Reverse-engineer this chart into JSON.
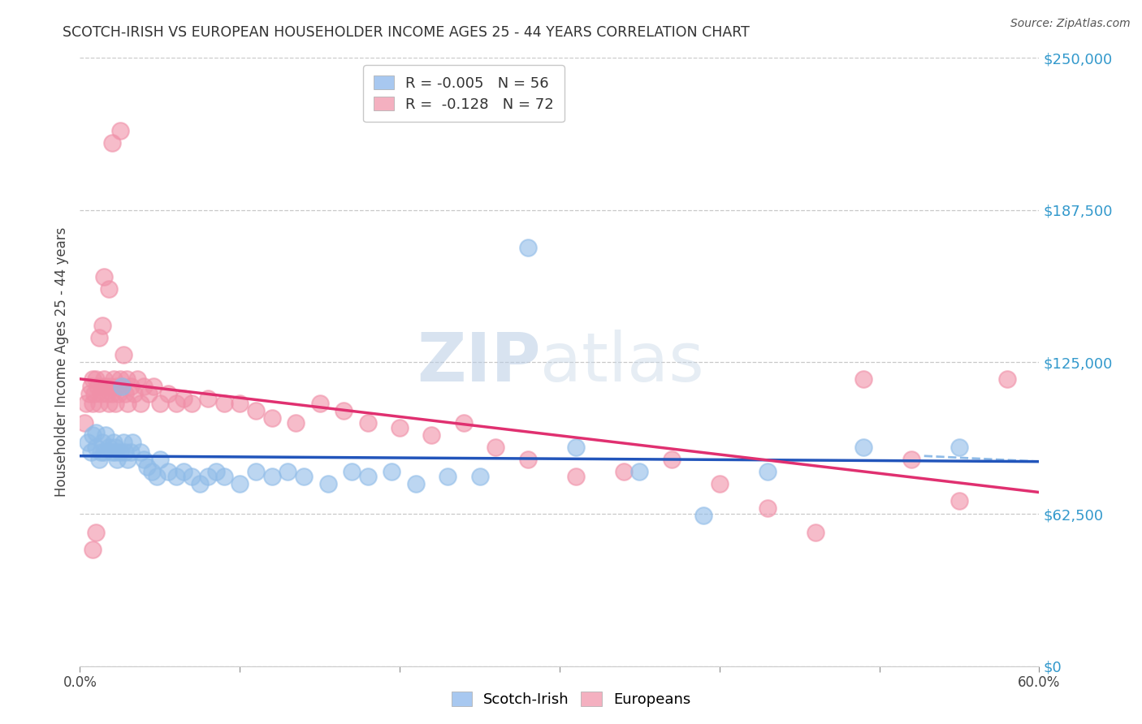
{
  "title": "SCOTCH-IRISH VS EUROPEAN HOUSEHOLDER INCOME AGES 25 - 44 YEARS CORRELATION CHART",
  "source": "Source: ZipAtlas.com",
  "ylabel": "Householder Income Ages 25 - 44 years",
  "ytick_labels": [
    "$0",
    "$62,500",
    "$125,000",
    "$187,500",
    "$250,000"
  ],
  "ytick_vals": [
    0,
    62500,
    125000,
    187500,
    250000
  ],
  "legend_label1": "R = -0.005   N = 56",
  "legend_label2": "R =  -0.128   N = 72",
  "legend_color1": "#a8c8f0",
  "legend_color2": "#f4b0c0",
  "scatter_color1": "#90bce8",
  "scatter_color2": "#f090a8",
  "line_color1": "#2255bb",
  "line_color2": "#e03070",
  "watermark_zip": "ZIP",
  "watermark_atlas": "atlas",
  "background_color": "#ffffff",
  "grid_color": "#c8c8c8",
  "xmin": 0.0,
  "xmax": 0.6,
  "ymin": 0,
  "ymax": 250000,
  "scotch_irish_x": [
    0.005,
    0.007,
    0.008,
    0.01,
    0.01,
    0.012,
    0.013,
    0.014,
    0.015,
    0.016,
    0.018,
    0.02,
    0.021,
    0.022,
    0.022,
    0.023,
    0.025,
    0.026,
    0.027,
    0.028,
    0.03,
    0.032,
    0.033,
    0.038,
    0.04,
    0.042,
    0.045,
    0.048,
    0.05,
    0.055,
    0.06,
    0.065,
    0.07,
    0.075,
    0.08,
    0.085,
    0.09,
    0.1,
    0.11,
    0.12,
    0.13,
    0.14,
    0.155,
    0.17,
    0.18,
    0.195,
    0.21,
    0.23,
    0.25,
    0.28,
    0.31,
    0.35,
    0.39,
    0.43,
    0.49,
    0.55
  ],
  "scotch_irish_y": [
    92000,
    88000,
    95000,
    90000,
    96000,
    85000,
    88000,
    92000,
    88000,
    95000,
    90000,
    88000,
    92000,
    90000,
    88000,
    85000,
    88000,
    115000,
    92000,
    88000,
    85000,
    88000,
    92000,
    88000,
    85000,
    82000,
    80000,
    78000,
    85000,
    80000,
    78000,
    80000,
    78000,
    75000,
    78000,
    80000,
    78000,
    75000,
    80000,
    78000,
    80000,
    78000,
    75000,
    80000,
    78000,
    80000,
    75000,
    78000,
    78000,
    172000,
    90000,
    80000,
    62000,
    80000,
    90000,
    90000
  ],
  "europeans_x": [
    0.003,
    0.004,
    0.006,
    0.007,
    0.008,
    0.008,
    0.009,
    0.01,
    0.011,
    0.012,
    0.013,
    0.014,
    0.015,
    0.016,
    0.017,
    0.018,
    0.019,
    0.02,
    0.021,
    0.022,
    0.023,
    0.024,
    0.025,
    0.026,
    0.027,
    0.028,
    0.029,
    0.03,
    0.032,
    0.034,
    0.036,
    0.038,
    0.04,
    0.043,
    0.046,
    0.05,
    0.055,
    0.06,
    0.065,
    0.07,
    0.08,
    0.09,
    0.1,
    0.11,
    0.12,
    0.135,
    0.15,
    0.165,
    0.18,
    0.2,
    0.22,
    0.24,
    0.26,
    0.28,
    0.31,
    0.34,
    0.37,
    0.4,
    0.43,
    0.46,
    0.49,
    0.52,
    0.55,
    0.58,
    0.02,
    0.025,
    0.015,
    0.018,
    0.012,
    0.014,
    0.01,
    0.008
  ],
  "europeans_y": [
    100000,
    108000,
    112000,
    115000,
    118000,
    108000,
    112000,
    118000,
    115000,
    108000,
    112000,
    115000,
    118000,
    115000,
    112000,
    108000,
    115000,
    112000,
    118000,
    108000,
    115000,
    112000,
    118000,
    115000,
    128000,
    112000,
    118000,
    108000,
    115000,
    112000,
    118000,
    108000,
    115000,
    112000,
    115000,
    108000,
    112000,
    108000,
    110000,
    108000,
    110000,
    108000,
    108000,
    105000,
    102000,
    100000,
    108000,
    105000,
    100000,
    98000,
    95000,
    100000,
    90000,
    85000,
    78000,
    80000,
    85000,
    75000,
    65000,
    55000,
    118000,
    85000,
    68000,
    118000,
    215000,
    220000,
    160000,
    155000,
    135000,
    140000,
    55000,
    48000
  ]
}
